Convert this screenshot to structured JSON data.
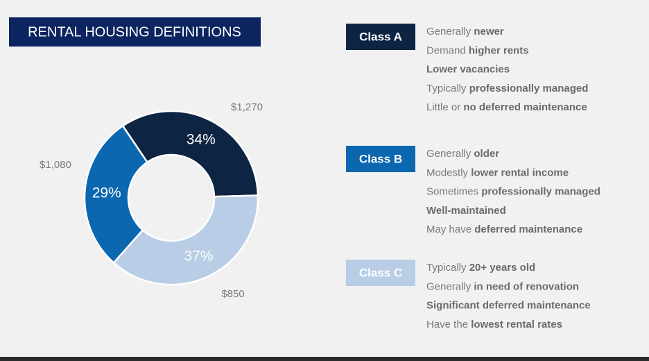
{
  "chart_data": {
    "type": "pie",
    "donut": true,
    "title": "RENTAL HOUSING DEFINITIONS",
    "values": [
      34,
      37,
      29
    ],
    "value_labels": [
      "34%",
      "37%",
      "29%"
    ],
    "colors": [
      "#0d2442",
      "#b9cde6",
      "#0b67b0"
    ],
    "annotations": [
      "$1,270",
      "$850",
      "$1,080"
    ]
  },
  "classes": [
    {
      "name": "Class A",
      "color": "#0d2442",
      "bullets": [
        [
          {
            "text": "Generally "
          },
          {
            "text": "newer",
            "bold": true
          }
        ],
        [
          {
            "text": "Demand "
          },
          {
            "text": "higher rents",
            "bold": true
          }
        ],
        [
          {
            "text": "Lower vacancies",
            "bold": true
          }
        ],
        [
          {
            "text": "Typically "
          },
          {
            "text": "professionally managed",
            "bold": true
          }
        ],
        [
          {
            "text": "Little or "
          },
          {
            "text": "no deferred maintenance",
            "bold": true
          }
        ]
      ]
    },
    {
      "name": "Class B",
      "color": "#0b67b0",
      "bullets": [
        [
          {
            "text": "Generally "
          },
          {
            "text": "older",
            "bold": true
          }
        ],
        [
          {
            "text": "Modestly "
          },
          {
            "text": "lower rental income",
            "bold": true
          }
        ],
        [
          {
            "text": "Sometimes "
          },
          {
            "text": "professionally managed",
            "bold": true
          }
        ],
        [
          {
            "text": "Well-maintained",
            "bold": true
          }
        ],
        [
          {
            "text": "May have "
          },
          {
            "text": "deferred maintenance",
            "bold": true
          }
        ]
      ]
    },
    {
      "name": "Class C",
      "color": "#b9cde6",
      "bullets": [
        [
          {
            "text": "Typically "
          },
          {
            "text": "20+ years old",
            "bold": true
          }
        ],
        [
          {
            "text": "Generally "
          },
          {
            "text": "in need of renovation",
            "bold": true
          }
        ],
        [
          {
            "text": "Significant deferred maintenance",
            "bold": true
          }
        ],
        [
          {
            "text": "Have the "
          },
          {
            "text": "lowest rental rates",
            "bold": true
          }
        ]
      ]
    }
  ]
}
